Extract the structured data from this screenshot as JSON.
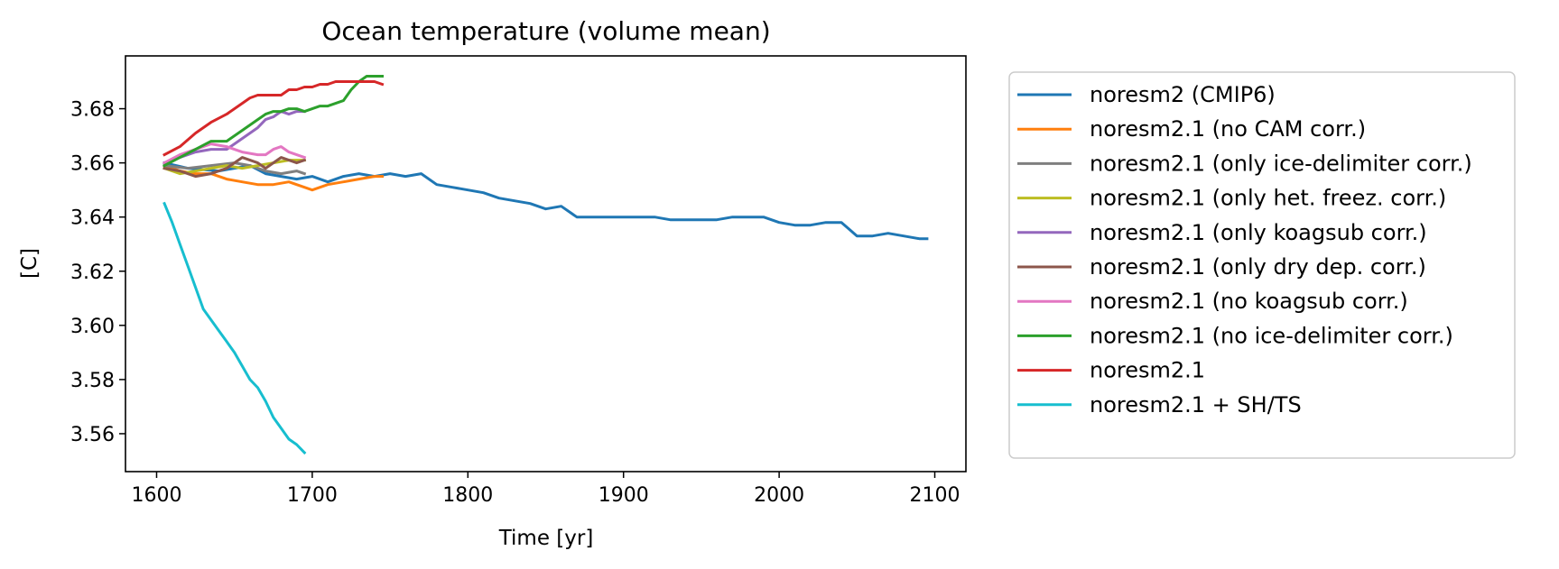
{
  "chart_data": {
    "type": "line",
    "title": "Ocean temperature (volume mean)",
    "xlabel": "Time [yr]",
    "ylabel": "[C]",
    "xlim": [
      1580,
      2120
    ],
    "ylim": [
      3.546,
      3.6995
    ],
    "xticks": [
      1600,
      1700,
      1800,
      1900,
      2000,
      2100
    ],
    "yticks": [
      3.56,
      3.58,
      3.6,
      3.62,
      3.64,
      3.66,
      3.68
    ],
    "ytick_labels": [
      "3.56",
      "3.58",
      "3.60",
      "3.62",
      "3.64",
      "3.66",
      "3.68"
    ],
    "grid": false,
    "legend_position": "outside-right",
    "series": [
      {
        "name": "noresm2 (CMIP6)",
        "color": "#1f77b4",
        "x": [
          1605,
          1620,
          1640,
          1660,
          1670,
          1680,
          1690,
          1700,
          1710,
          1720,
          1730,
          1740,
          1750,
          1760,
          1770,
          1780,
          1790,
          1800,
          1810,
          1820,
          1830,
          1840,
          1850,
          1860,
          1870,
          1880,
          1890,
          1900,
          1910,
          1920,
          1930,
          1940,
          1950,
          1960,
          1970,
          1980,
          1990,
          2000,
          2010,
          2020,
          2030,
          2040,
          2050,
          2060,
          2070,
          2080,
          2090,
          2095
        ],
        "y": [
          3.66,
          3.658,
          3.657,
          3.659,
          3.656,
          3.655,
          3.654,
          3.655,
          3.653,
          3.655,
          3.656,
          3.655,
          3.656,
          3.655,
          3.656,
          3.652,
          3.651,
          3.65,
          3.649,
          3.647,
          3.646,
          3.645,
          3.643,
          3.644,
          3.64,
          3.64,
          3.64,
          3.64,
          3.64,
          3.64,
          3.639,
          3.639,
          3.639,
          3.639,
          3.64,
          3.64,
          3.64,
          3.638,
          3.637,
          3.637,
          3.638,
          3.638,
          3.633,
          3.633,
          3.634,
          3.633,
          3.632,
          3.632
        ]
      },
      {
        "name": "noresm2.1 (no CAM corr.)",
        "color": "#ff7f0e",
        "x": [
          1605,
          1615,
          1625,
          1635,
          1645,
          1655,
          1665,
          1675,
          1685,
          1690,
          1695,
          1700,
          1710,
          1720,
          1730,
          1740,
          1745
        ],
        "y": [
          3.659,
          3.657,
          3.656,
          3.656,
          3.654,
          3.653,
          3.652,
          3.652,
          3.653,
          3.652,
          3.651,
          3.65,
          3.652,
          3.653,
          3.654,
          3.655,
          3.655
        ]
      },
      {
        "name": "noresm2.1 (only ice-delimiter corr.)",
        "color": "#7f7f7f",
        "x": [
          1605,
          1620,
          1635,
          1650,
          1660,
          1670,
          1680,
          1690,
          1695
        ],
        "y": [
          3.659,
          3.658,
          3.659,
          3.66,
          3.659,
          3.657,
          3.656,
          3.657,
          3.656
        ]
      },
      {
        "name": "noresm2.1 (only het. freez. corr.)",
        "color": "#bcbd22",
        "x": [
          1605,
          1615,
          1625,
          1635,
          1645,
          1655,
          1665,
          1675,
          1685,
          1695
        ],
        "y": [
          3.658,
          3.656,
          3.657,
          3.658,
          3.659,
          3.658,
          3.659,
          3.66,
          3.661,
          3.661
        ]
      },
      {
        "name": "noresm2.1 (only koagsub corr.)",
        "color": "#9467bd",
        "x": [
          1605,
          1615,
          1625,
          1635,
          1645,
          1650,
          1655,
          1660,
          1665,
          1670,
          1675,
          1680,
          1685,
          1690,
          1695
        ],
        "y": [
          3.66,
          3.662,
          3.664,
          3.665,
          3.665,
          3.667,
          3.669,
          3.671,
          3.673,
          3.676,
          3.677,
          3.679,
          3.678,
          3.679,
          3.679
        ]
      },
      {
        "name": "noresm2.1 (only dry dep. corr.)",
        "color": "#8c564b",
        "x": [
          1605,
          1615,
          1625,
          1635,
          1645,
          1650,
          1655,
          1660,
          1665,
          1670,
          1675,
          1680,
          1685,
          1690,
          1695
        ],
        "y": [
          3.658,
          3.657,
          3.655,
          3.656,
          3.658,
          3.66,
          3.662,
          3.661,
          3.66,
          3.658,
          3.66,
          3.662,
          3.661,
          3.66,
          3.661
        ]
      },
      {
        "name": "noresm2.1 (no koagsub corr.)",
        "color": "#e377c2",
        "x": [
          1605,
          1615,
          1625,
          1635,
          1645,
          1655,
          1665,
          1670,
          1675,
          1680,
          1685,
          1690,
          1695
        ],
        "y": [
          3.66,
          3.663,
          3.665,
          3.667,
          3.666,
          3.664,
          3.663,
          3.663,
          3.665,
          3.666,
          3.664,
          3.663,
          3.662
        ]
      },
      {
        "name": "noresm2.1 (no ice-delimiter corr.)",
        "color": "#2ca02c",
        "x": [
          1605,
          1615,
          1625,
          1635,
          1645,
          1655,
          1660,
          1665,
          1670,
          1675,
          1680,
          1685,
          1690,
          1695,
          1700,
          1705,
          1710,
          1715,
          1720,
          1725,
          1730,
          1735,
          1740,
          1745
        ],
        "y": [
          3.659,
          3.662,
          3.665,
          3.668,
          3.668,
          3.672,
          3.674,
          3.676,
          3.678,
          3.679,
          3.679,
          3.68,
          3.68,
          3.679,
          3.68,
          3.681,
          3.681,
          3.682,
          3.683,
          3.687,
          3.69,
          3.692,
          3.692,
          3.692
        ]
      },
      {
        "name": "noresm2.1",
        "color": "#d62728",
        "x": [
          1605,
          1615,
          1625,
          1635,
          1645,
          1655,
          1660,
          1665,
          1670,
          1675,
          1680,
          1685,
          1690,
          1695,
          1700,
          1705,
          1710,
          1715,
          1720,
          1725,
          1730,
          1735,
          1740,
          1745
        ],
        "y": [
          3.663,
          3.666,
          3.671,
          3.675,
          3.678,
          3.682,
          3.684,
          3.685,
          3.685,
          3.685,
          3.685,
          3.687,
          3.687,
          3.688,
          3.688,
          3.689,
          3.689,
          3.69,
          3.69,
          3.69,
          3.69,
          3.69,
          3.69,
          3.689
        ]
      },
      {
        "name": "noresm2.1 + SH/TS",
        "color": "#17becf",
        "x": [
          1605,
          1610,
          1615,
          1620,
          1625,
          1630,
          1635,
          1640,
          1645,
          1650,
          1655,
          1660,
          1665,
          1670,
          1675,
          1680,
          1685,
          1690,
          1695
        ],
        "y": [
          3.645,
          3.638,
          3.63,
          3.622,
          3.614,
          3.606,
          3.602,
          3.598,
          3.594,
          3.59,
          3.585,
          3.58,
          3.577,
          3.572,
          3.566,
          3.562,
          3.558,
          3.556,
          3.553
        ]
      }
    ]
  }
}
